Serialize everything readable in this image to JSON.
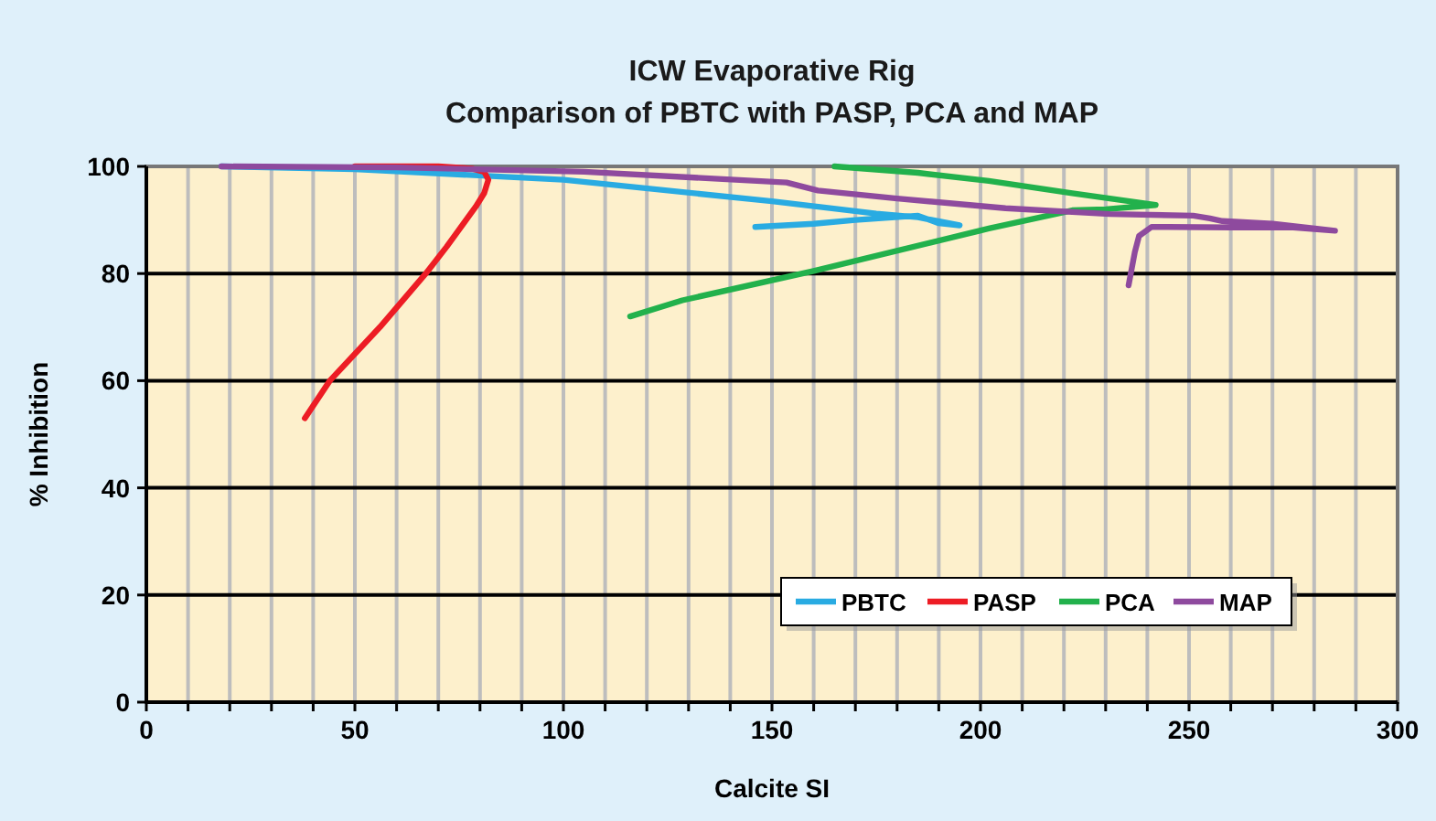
{
  "chart_data": {
    "type": "line",
    "title": "ICW Evaporative Rig",
    "subtitle": "Comparison of PBTC with PASP, PCA and MAP",
    "xlabel": "Calcite SI",
    "ylabel": "% Inhibition",
    "xlim": [
      0,
      300
    ],
    "ylim": [
      0,
      100
    ],
    "xticks": [
      0,
      {
        "value": 10,
        "label": null
      },
      {
        "value": 20,
        "label": null
      },
      {
        "value": 30,
        "label": null
      },
      {
        "value": 40,
        "label": null
      },
      50,
      {
        "value": 60,
        "label": null
      },
      {
        "value": 70,
        "label": null
      },
      {
        "value": 80,
        "label": null
      },
      {
        "value": 90,
        "label": null
      },
      100,
      {
        "value": 110,
        "label": null
      },
      {
        "value": 120,
        "label": null
      },
      {
        "value": 130,
        "label": null
      },
      {
        "value": 140,
        "label": null
      },
      150,
      {
        "value": 160,
        "label": null
      },
      {
        "value": 170,
        "label": null
      },
      {
        "value": 180,
        "label": null
      },
      {
        "value": 190,
        "label": null
      },
      200,
      {
        "value": 210,
        "label": null
      },
      {
        "value": 220,
        "label": null
      },
      {
        "value": 230,
        "label": null
      },
      {
        "value": 240,
        "label": null
      },
      250,
      {
        "value": 260,
        "label": null
      },
      {
        "value": 270,
        "label": null
      },
      {
        "value": 280,
        "label": null
      },
      {
        "value": 290,
        "label": null
      },
      300
    ],
    "yticks": [
      0,
      20,
      40,
      60,
      80,
      100
    ],
    "grid": true,
    "legend": "bottom right",
    "marker": "none",
    "line_style": "solid",
    "series": [
      {
        "name": "PBTC",
        "color": "#29abe2",
        "x": [
          18,
          50,
          100,
          150,
          175,
          185,
          195,
          190,
          185,
          170,
          160,
          146
        ],
        "values": [
          100,
          99.5,
          97.5,
          93.5,
          91.2,
          90.5,
          89,
          89.4,
          90.8,
          90,
          89.3,
          88.7
        ]
      },
      {
        "name": "PASP",
        "color": "#ed1c24",
        "x": [
          50,
          70,
          78,
          81,
          82,
          81,
          79,
          72,
          67,
          56,
          44,
          38
        ],
        "values": [
          100,
          100,
          99.6,
          99,
          97.5,
          95,
          92.5,
          85,
          80,
          70,
          60,
          53
        ]
      },
      {
        "name": "PCA",
        "color": "#22b14c",
        "x": [
          165,
          185,
          202,
          222,
          242,
          230,
          222,
          202,
          160,
          128.5,
          116
        ],
        "values": [
          100,
          98.8,
          97.3,
          95,
          92.8,
          92,
          91.8,
          88.4,
          80.5,
          75,
          72
        ]
      },
      {
        "name": "MAP",
        "color": "#8e4a9e",
        "x": [
          18,
          60,
          105,
          153.5,
          161,
          180,
          206,
          231,
          251,
          255,
          258,
          270,
          285,
          275,
          260,
          245,
          241,
          238,
          237,
          235.5
        ],
        "values": [
          100,
          99.8,
          99,
          97,
          95.5,
          94,
          92.2,
          91.1,
          90.8,
          90.3,
          89.8,
          89.3,
          88,
          88.6,
          88.6,
          88.7,
          88.7,
          87,
          84,
          77.8
        ]
      }
    ]
  }
}
